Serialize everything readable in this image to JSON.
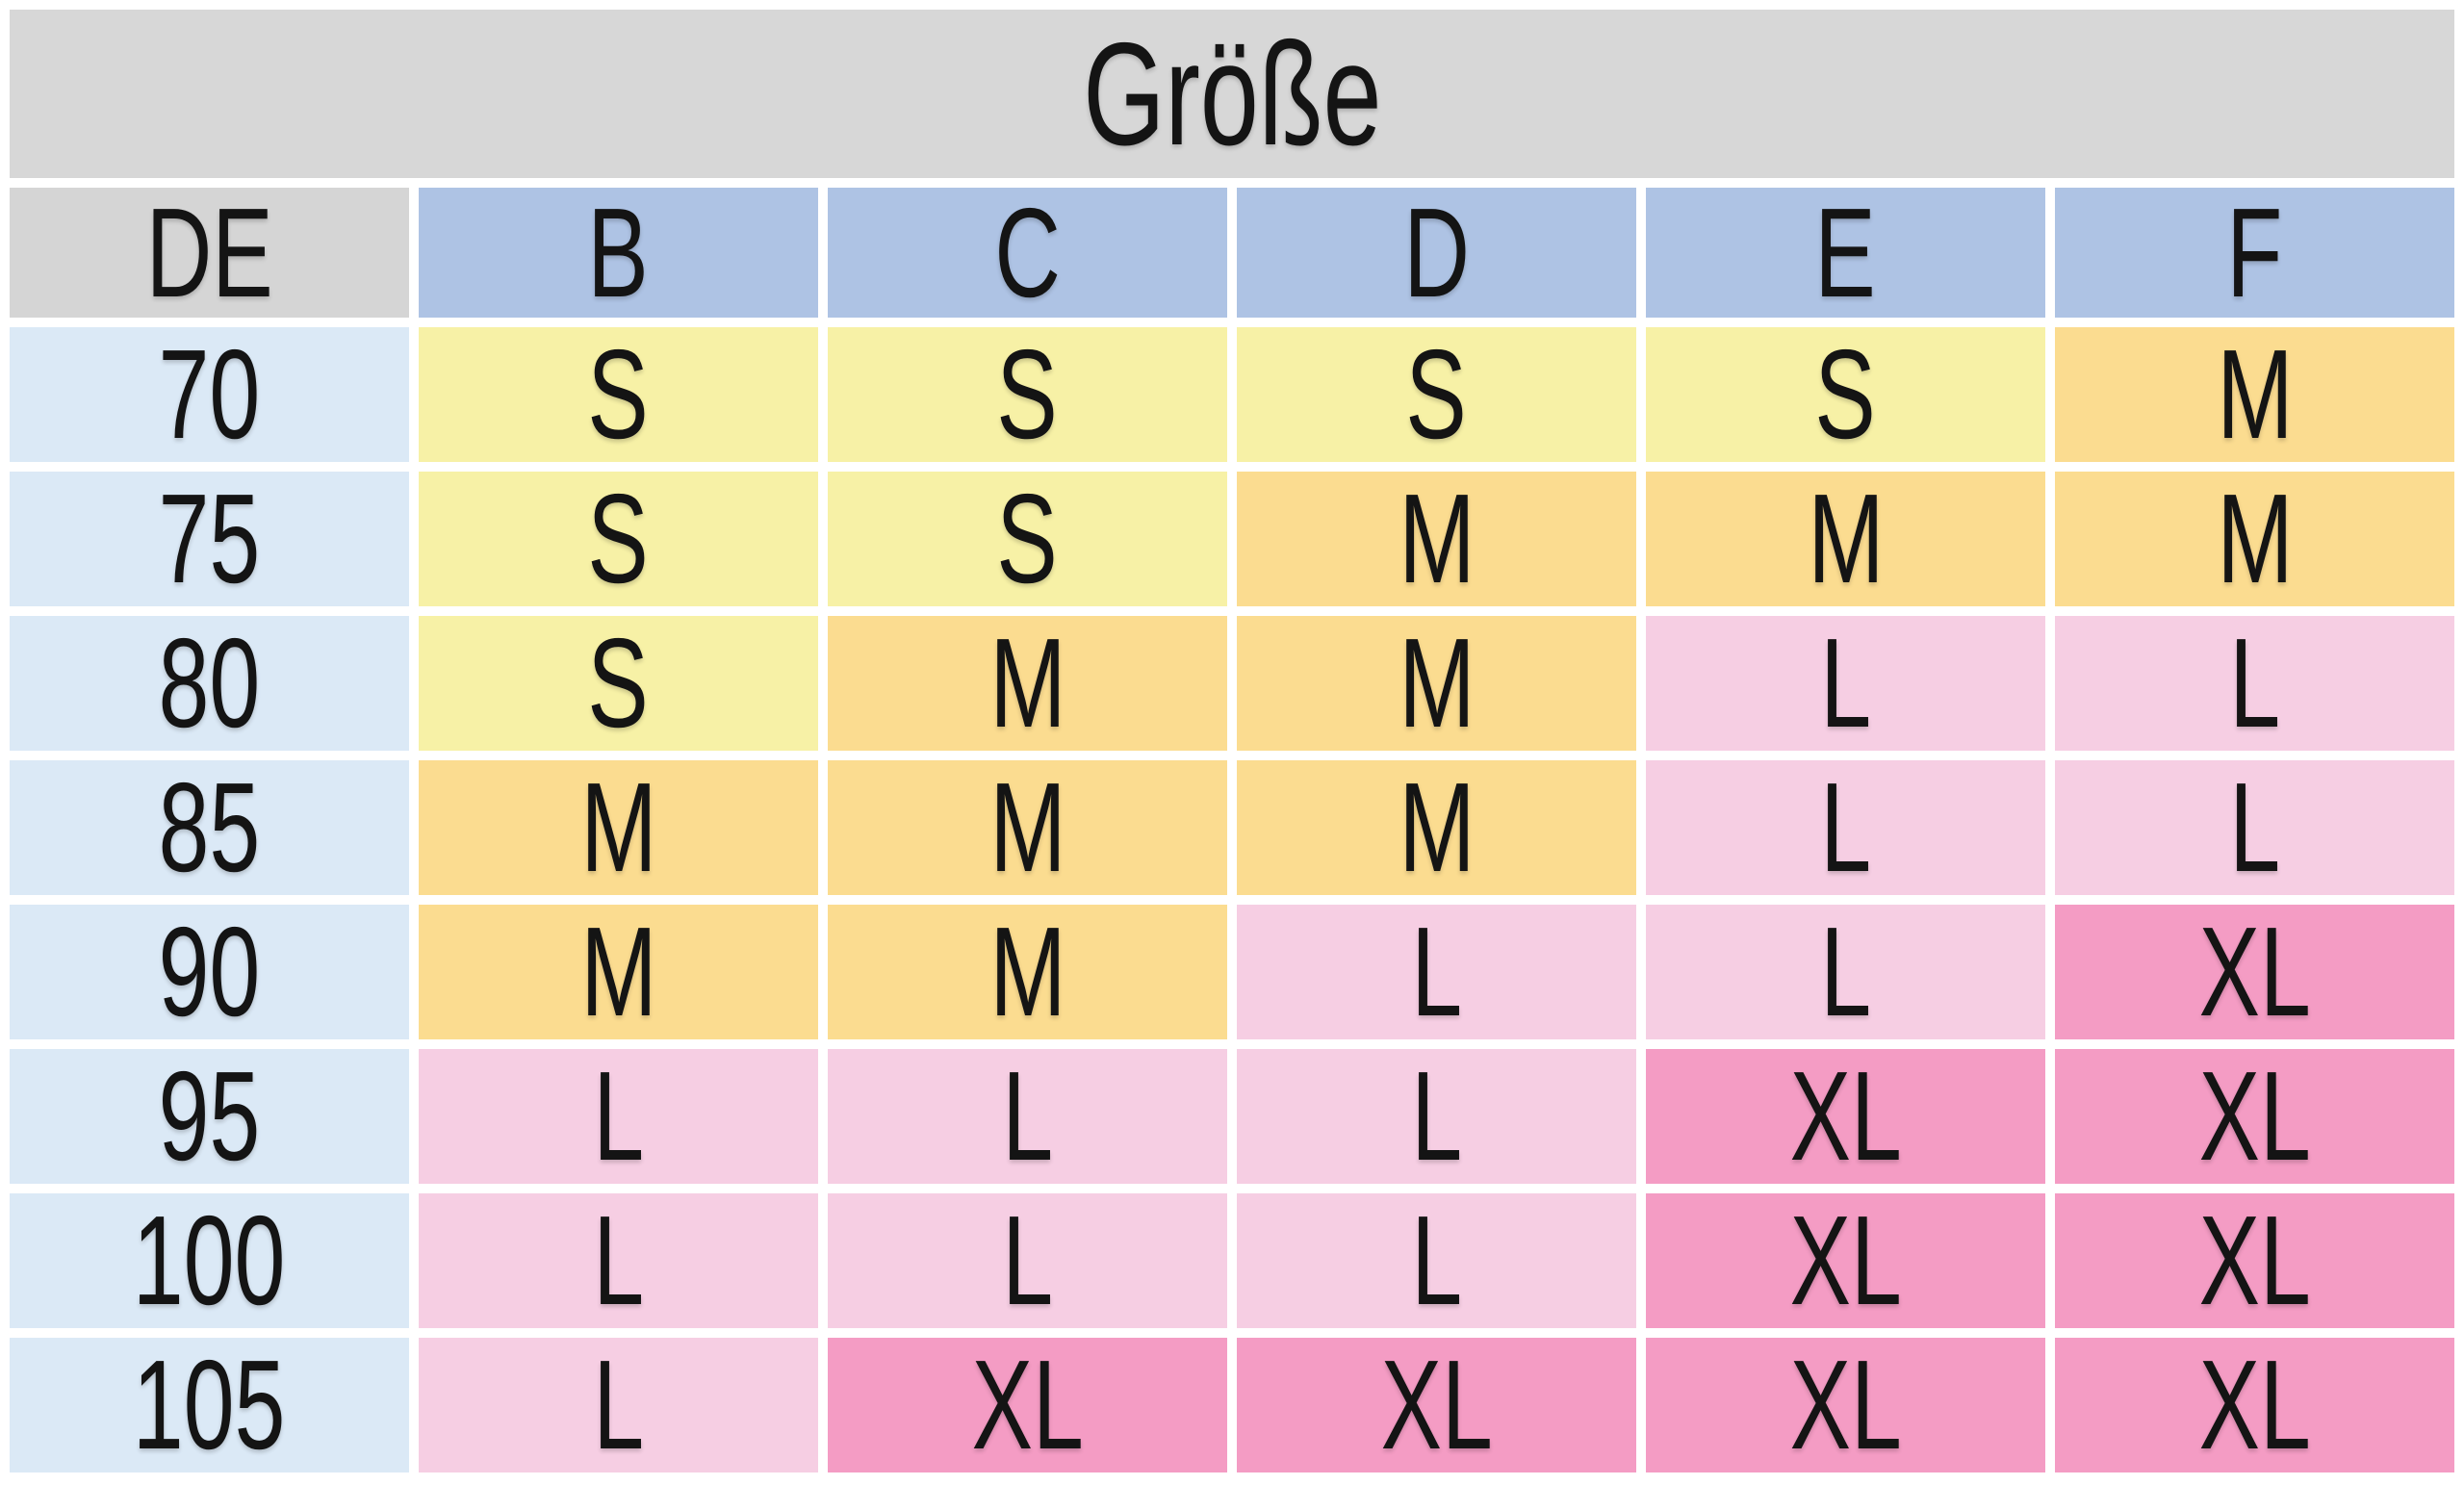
{
  "chart_data": {
    "type": "table",
    "title": "Größe",
    "columns": [
      "DE",
      "B",
      "C",
      "D",
      "E",
      "F"
    ],
    "rows": [
      {
        "label": "70",
        "cells": [
          "S",
          "S",
          "S",
          "S",
          "M"
        ]
      },
      {
        "label": "75",
        "cells": [
          "S",
          "S",
          "M",
          "M",
          "M"
        ]
      },
      {
        "label": "80",
        "cells": [
          "S",
          "M",
          "M",
          "L",
          "L"
        ]
      },
      {
        "label": "85",
        "cells": [
          "M",
          "M",
          "M",
          "L",
          "L"
        ]
      },
      {
        "label": "90",
        "cells": [
          "M",
          "M",
          "L",
          "L",
          "XL"
        ]
      },
      {
        "label": "95",
        "cells": [
          "L",
          "L",
          "L",
          "XL",
          "XL"
        ]
      },
      {
        "label": "100",
        "cells": [
          "L",
          "L",
          "L",
          "XL",
          "XL"
        ]
      },
      {
        "label": "105",
        "cells": [
          "L",
          "XL",
          "XL",
          "XL",
          "XL"
        ]
      }
    ],
    "layout_hints": {
      "title_row": "spans all columns",
      "first_column_is_band_size_de": true,
      "grid": "white gaps between all cells"
    }
  },
  "colors": {
    "page_bg": "#ffffff",
    "title_bg": "#d7d7d7",
    "corner_header_bg": "#d5d5d5",
    "cup_header_bg": "#aec3e4",
    "row_label_bg": "#dbe9f6",
    "text": "#141414",
    "size_fill": {
      "S": "#f7f1a6",
      "M": "#fbdc90",
      "L": "#f6cee3",
      "XL": "#f49cc4"
    }
  }
}
